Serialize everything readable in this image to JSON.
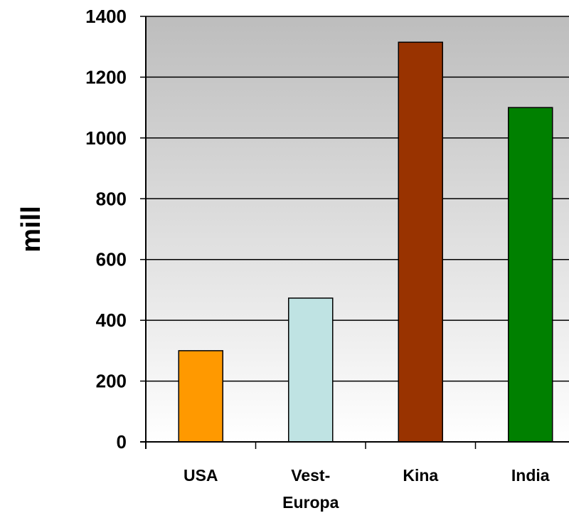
{
  "chart_data": {
    "type": "bar",
    "categories": [
      [
        "USA"
      ],
      [
        "Vest-",
        "Europa"
      ],
      [
        "Kina"
      ],
      [
        "India"
      ]
    ],
    "values": [
      300,
      473,
      1315,
      1100
    ],
    "ylabel": "mill",
    "ylim": [
      0,
      1400
    ],
    "yticks": [
      0,
      200,
      400,
      600,
      800,
      1000,
      1200,
      1400
    ],
    "grid": true,
    "bar_colors": [
      "#ff9900",
      "#bfe3e3",
      "#993300",
      "#008000"
    ],
    "plot_background": [
      "#bdbdbd",
      "#ffffff"
    ]
  }
}
